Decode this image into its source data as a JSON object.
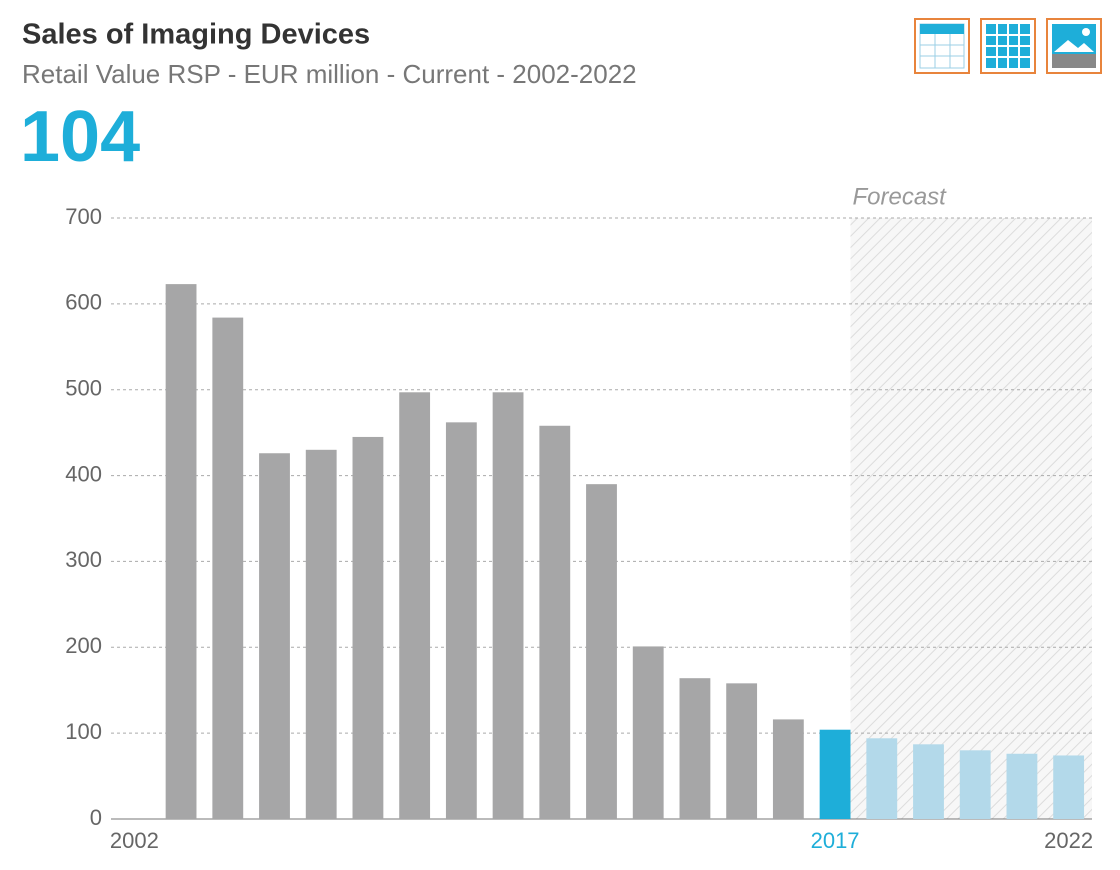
{
  "chart_data": {
    "type": "bar",
    "title": "Sales of Imaging Devices",
    "subtitle": "Retail Value RSP - EUR million - Current - 2002-2022",
    "annotation": "Forecast",
    "categories": [
      "2002",
      null,
      null,
      null,
      null,
      null,
      null,
      null,
      null,
      null,
      null,
      null,
      null,
      null,
      null,
      "2017",
      null,
      null,
      null,
      null,
      "2022"
    ],
    "values": [
      null,
      623,
      584,
      426,
      430,
      445,
      497,
      462,
      497,
      458,
      390,
      201,
      164,
      158,
      116,
      104,
      94,
      87,
      80,
      76,
      74
    ],
    "bar_colors": [
      "#a6a6a7",
      "#a6a6a7",
      "#a6a6a7",
      "#a6a6a7",
      "#a6a6a7",
      "#a6a6a7",
      "#a6a6a7",
      "#a6a6a7",
      "#a6a6a7",
      "#a6a6a7",
      "#a6a6a7",
      "#a6a6a7",
      "#a6a6a7",
      "#a6a6a7",
      "#a6a6a7",
      "#1eaed9",
      "#b3d9ea",
      "#b3d9ea",
      "#b3d9ea",
      "#b3d9ea",
      "#b3d9ea"
    ],
    "ylim": [
      0,
      700
    ],
    "yticks": [
      0,
      100,
      200,
      300,
      400,
      500,
      600,
      700
    ],
    "grid": true
  }
}
